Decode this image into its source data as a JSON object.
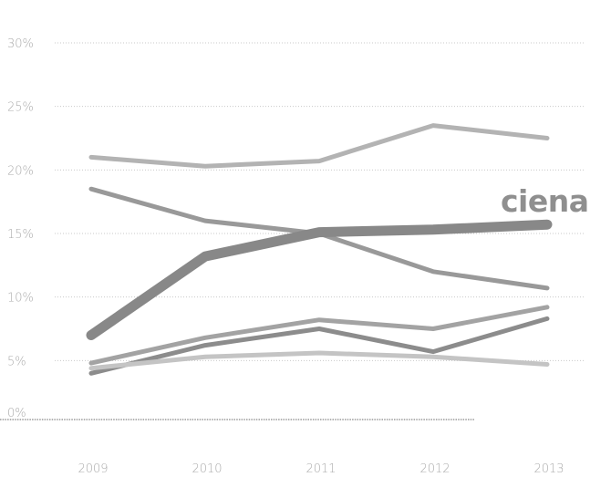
{
  "chart_data": {
    "type": "line",
    "title": "",
    "xlabel": "",
    "ylabel": "",
    "x": [
      "2009",
      "2010",
      "2011",
      "2012",
      "2013"
    ],
    "y_ticks": [
      "0%",
      "5%",
      "10%",
      "15%",
      "20%",
      "25%",
      "30%"
    ],
    "ylim": [
      0,
      30
    ],
    "grid": "dotted-horizontal",
    "annotation": "ciena",
    "series": [
      {
        "values": [
          21.0,
          20.3,
          20.7,
          23.5,
          22.5
        ],
        "color": "#b3b3b3",
        "width": 5
      },
      {
        "values": [
          18.5,
          16.0,
          15.0,
          12.0,
          10.7
        ],
        "color": "#999999",
        "width": 5
      },
      {
        "values": [
          7.0,
          13.2,
          15.1,
          15.3,
          15.7
        ],
        "color": "#888888",
        "width": 11
      },
      {
        "values": [
          4.8,
          6.8,
          8.2,
          7.5,
          9.2
        ],
        "color": "#a3a3a3",
        "width": 5
      },
      {
        "values": [
          4.0,
          6.2,
          7.5,
          5.7,
          8.3
        ],
        "color": "#8c8c8c",
        "width": 5
      },
      {
        "values": [
          4.4,
          5.3,
          5.6,
          5.3,
          4.7
        ],
        "color": "#c4c4c4",
        "width": 5
      }
    ]
  }
}
